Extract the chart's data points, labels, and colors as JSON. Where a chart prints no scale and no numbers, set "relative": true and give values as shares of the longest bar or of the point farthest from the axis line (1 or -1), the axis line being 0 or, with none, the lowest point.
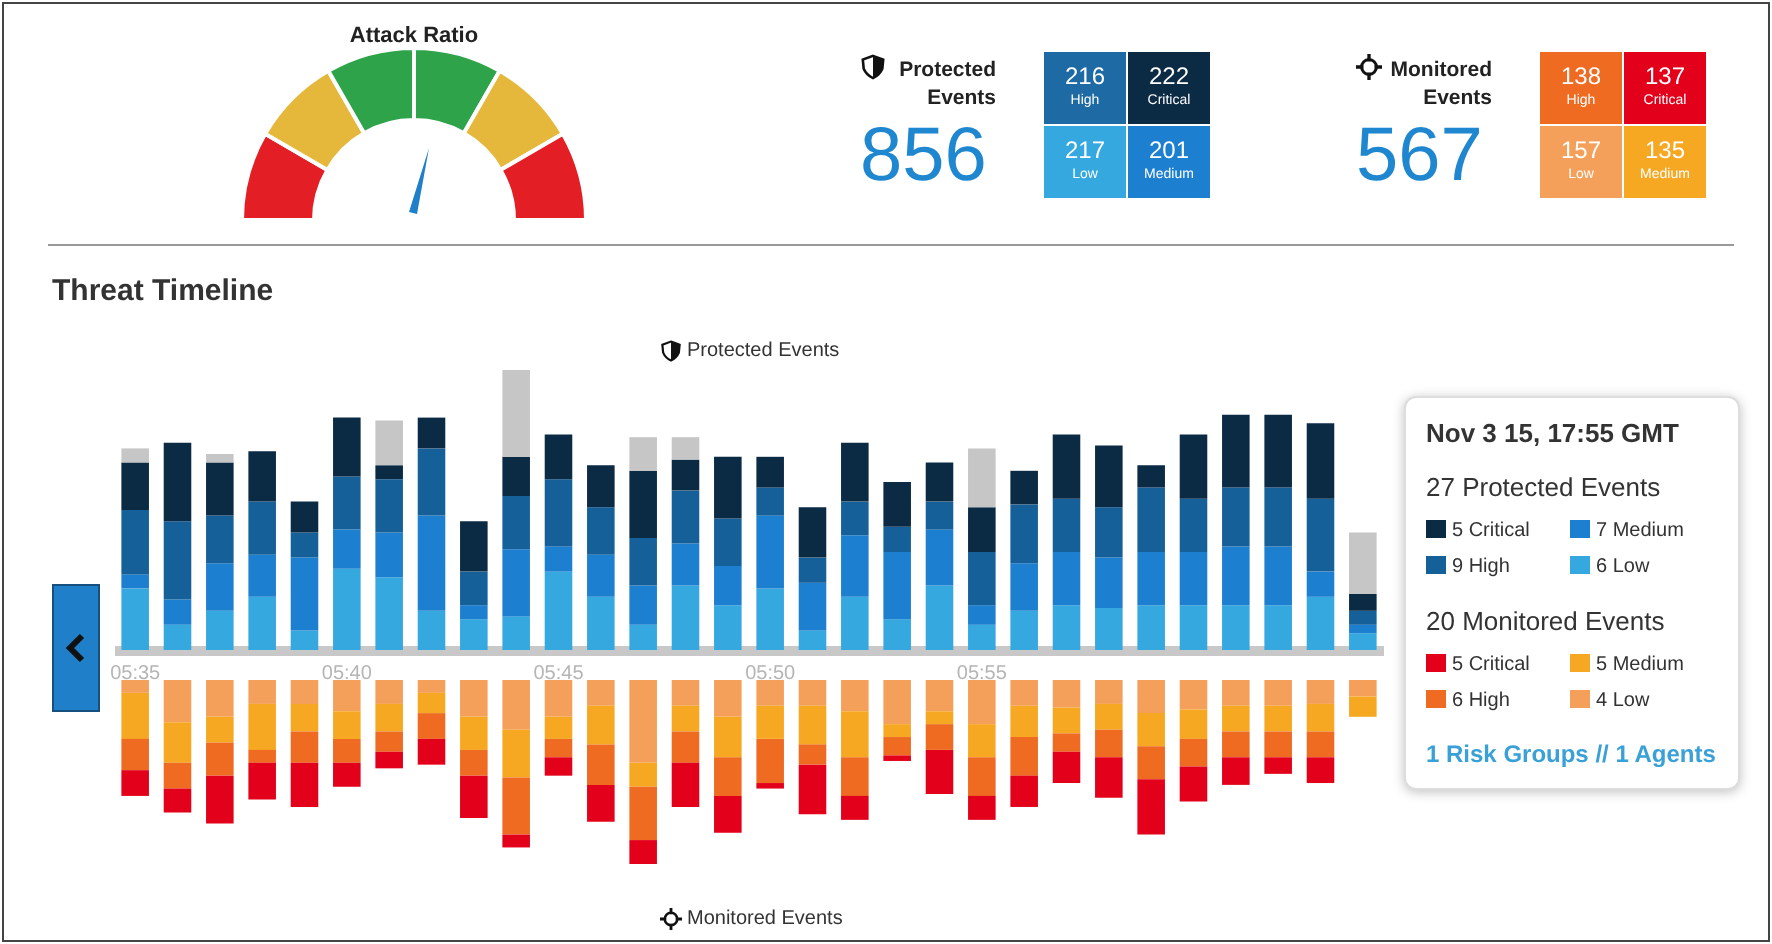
{
  "chart_data": [
    {
      "type": "donut",
      "title": "Attack Ratio",
      "categories": [
        null,
        null,
        null,
        null,
        null,
        null
      ],
      "values": [
        16.7,
        16.7,
        16.6,
        16.6,
        16.7,
        16.7
      ],
      "colors": [
        "#e31e24",
        "#e5b83c",
        "#2ea34a",
        "#2ea34a",
        "#e5b83c",
        "#e31e24"
      ]
    },
    {
      "type": "other",
      "title": "Protected Events",
      "annotations": [
        "856",
        "216",
        "High",
        "222",
        "Critical",
        "217",
        "Low",
        "201",
        "Medium"
      ],
      "colors": [
        "#1e6aa5",
        "#0b2a44",
        "#35a8e0",
        "#1d7fcf"
      ]
    },
    {
      "type": "other",
      "title": "Monitored Events",
      "annotations": [
        "567",
        "138",
        "High",
        "137",
        "Critical",
        "157",
        "Low",
        "135",
        "Medium"
      ],
      "colors": [
        "#ee6b21",
        "#e2001a",
        "#f5a05a",
        "#f7a823"
      ]
    },
    {
      "type": "bar",
      "title": "Threat Timeline",
      "subtitle": "Protected Events",
      "relative": true,
      "stacked": true,
      "tick_labels": "x",
      "categories": [
        "05:35",
        null,
        null,
        null,
        null,
        "05:40",
        null,
        null,
        null,
        null,
        "05:45",
        null,
        null,
        null,
        null,
        "05:50",
        null,
        null,
        null,
        null,
        "05:55",
        null,
        null,
        null,
        null,
        null,
        null,
        null,
        null,
        null
      ],
      "series": [
        {
          "color": "#35a8e0",
          "values": [
            0.22,
            0.09,
            0.14,
            0.19,
            0.07,
            0.29,
            0.26,
            0.14,
            0.11,
            0.12,
            0.28,
            0.19,
            0.09,
            0.23,
            0.16,
            0.22,
            0.07,
            0.19,
            0.11,
            0.23,
            0.09,
            0.14,
            0.16,
            0.15,
            0.16,
            0.16,
            0.16,
            0.16,
            0.19,
            0.06
          ]
        },
        {
          "color": "#1d7fcf",
          "values": [
            0.05,
            0.09,
            0.17,
            0.15,
            0.26,
            0.14,
            0.16,
            0.34,
            0.05,
            0.24,
            0.09,
            0.15,
            0.14,
            0.15,
            0.14,
            0.26,
            0.17,
            0.22,
            0.24,
            0.2,
            0.07,
            0.17,
            0.19,
            0.18,
            0.19,
            0.19,
            0.21,
            0.21,
            0.09,
            0.03
          ]
        },
        {
          "color": "#16609a",
          "values": [
            0.23,
            0.28,
            0.17,
            0.19,
            0.09,
            0.19,
            0.19,
            0.24,
            0.12,
            0.19,
            0.24,
            0.17,
            0.17,
            0.19,
            0.17,
            0.1,
            0.09,
            0.12,
            0.09,
            0.1,
            0.19,
            0.21,
            0.19,
            0.18,
            0.23,
            0.19,
            0.21,
            0.21,
            0.26,
            0.05
          ]
        },
        {
          "color": "#0b2a44",
          "values": [
            0.17,
            0.28,
            0.19,
            0.18,
            0.11,
            0.21,
            0.05,
            0.11,
            0.18,
            0.14,
            0.16,
            0.15,
            0.24,
            0.11,
            0.22,
            0.11,
            0.18,
            0.21,
            0.16,
            0.14,
            0.16,
            0.12,
            0.23,
            0.22,
            0.08,
            0.23,
            0.26,
            0.26,
            0.27,
            0.06
          ]
        },
        {
          "color": "#c6c6c6",
          "values": [
            0.05,
            null,
            0.03,
            null,
            null,
            null,
            0.16,
            null,
            null,
            0.31,
            null,
            null,
            0.12,
            0.08,
            null,
            null,
            null,
            null,
            null,
            null,
            0.21,
            null,
            null,
            null,
            null,
            null,
            null,
            null,
            null,
            0.22
          ]
        }
      ],
      "annotations": [
        "Nov 3 15, 17:55 GMT",
        "27 Protected Events",
        "5 Critical",
        "7 Medium",
        "9 High",
        "6 Low",
        "20 Monitored Events",
        "5 Critical",
        "5 Medium",
        "6 High",
        "4 Low",
        "1 Risk Groups // 1 Agents"
      ]
    },
    {
      "type": "bar",
      "title": "Monitored Events",
      "relative": true,
      "stacked": true,
      "tick_labels": false,
      "categories": [
        null,
        null,
        null,
        null,
        null,
        null,
        null,
        null,
        null,
        null,
        null,
        null,
        null,
        null,
        null,
        null,
        null,
        null,
        null,
        null,
        null,
        null,
        null,
        null,
        null,
        null,
        null,
        null,
        null,
        null
      ],
      "series": [
        {
          "color": "#f5a05a",
          "values": [
            -0.07,
            -0.23,
            -0.2,
            -0.13,
            -0.13,
            -0.17,
            -0.13,
            -0.07,
            -0.2,
            -0.27,
            -0.2,
            -0.14,
            -0.45,
            -0.14,
            -0.2,
            -0.14,
            -0.14,
            -0.17,
            -0.24,
            -0.17,
            -0.24,
            -0.14,
            -0.15,
            -0.13,
            -0.18,
            -0.16,
            -0.14,
            -0.14,
            -0.13,
            -0.09
          ]
        },
        {
          "color": "#f7a823",
          "values": [
            -0.25,
            -0.22,
            -0.14,
            -0.25,
            -0.15,
            -0.15,
            -0.15,
            -0.11,
            -0.18,
            -0.26,
            -0.12,
            -0.21,
            -0.13,
            -0.14,
            -0.22,
            -0.18,
            -0.21,
            -0.25,
            -0.07,
            -0.07,
            -0.18,
            -0.17,
            -0.14,
            -0.14,
            -0.18,
            -0.16,
            -0.14,
            -0.14,
            -0.15,
            -0.11
          ]
        },
        {
          "color": "#ee6b21",
          "values": [
            -0.17,
            -0.14,
            -0.18,
            -0.07,
            -0.17,
            -0.13,
            -0.11,
            -0.14,
            -0.14,
            -0.31,
            -0.1,
            -0.22,
            -0.29,
            -0.17,
            -0.21,
            -0.24,
            -0.11,
            -0.21,
            -0.1,
            -0.14,
            -0.21,
            -0.21,
            -0.1,
            -0.15,
            -0.18,
            -0.15,
            -0.14,
            -0.14,
            -0.14,
            0
          ]
        },
        {
          "color": "#e2001a",
          "values": [
            -0.14,
            -0.13,
            -0.26,
            -0.2,
            -0.24,
            -0.13,
            -0.09,
            -0.14,
            -0.23,
            -0.07,
            -0.1,
            -0.2,
            -0.13,
            -0.24,
            -0.2,
            -0.03,
            -0.27,
            -0.13,
            -0.03,
            -0.24,
            -0.13,
            -0.17,
            -0.17,
            -0.22,
            -0.3,
            -0.19,
            -0.15,
            -0.09,
            -0.14,
            0
          ]
        }
      ]
    }
  ]
}
